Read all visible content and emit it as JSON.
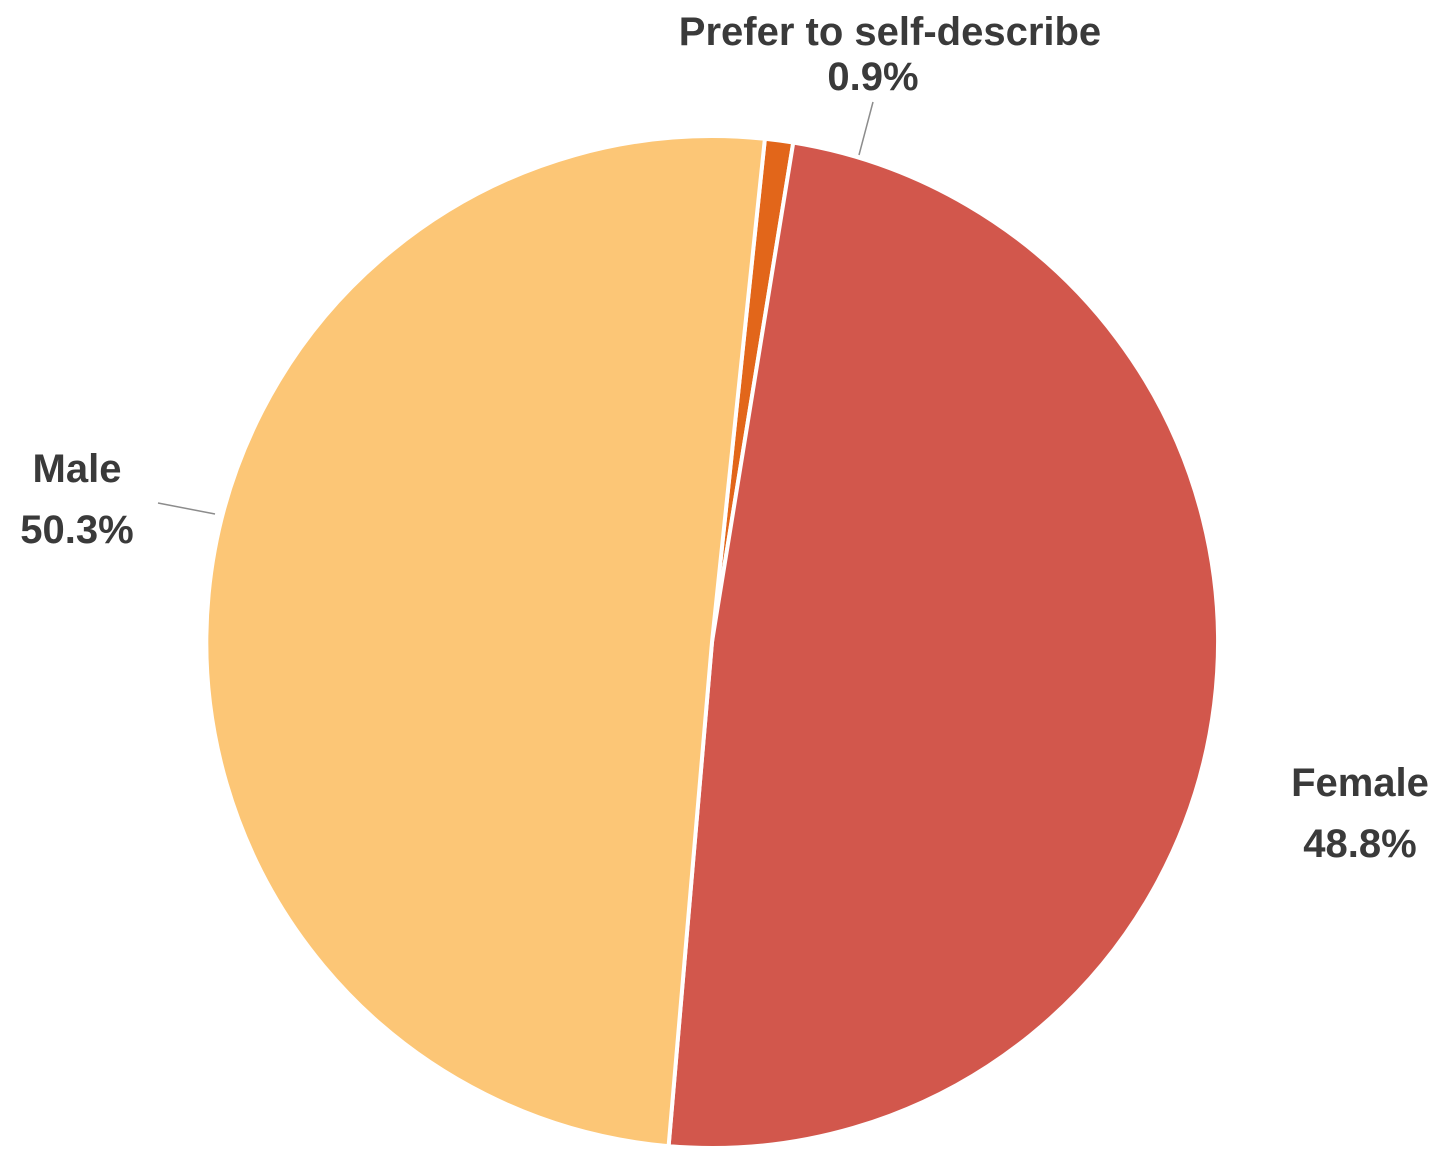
{
  "chart_data": {
    "type": "pie",
    "title": "",
    "slices": [
      {
        "name": "Prefer to self-describe",
        "value": 0.9,
        "label": "0.9%",
        "color": "#e2661a"
      },
      {
        "name": "Female",
        "value": 48.8,
        "label": "48.8%",
        "color": "#d2574c"
      },
      {
        "name": "Male",
        "value": 50.3,
        "label": "50.3%",
        "color": "#fcc676"
      }
    ],
    "unit": "%",
    "start": "top, clockwise",
    "slice_border_color": "#ffffff"
  }
}
